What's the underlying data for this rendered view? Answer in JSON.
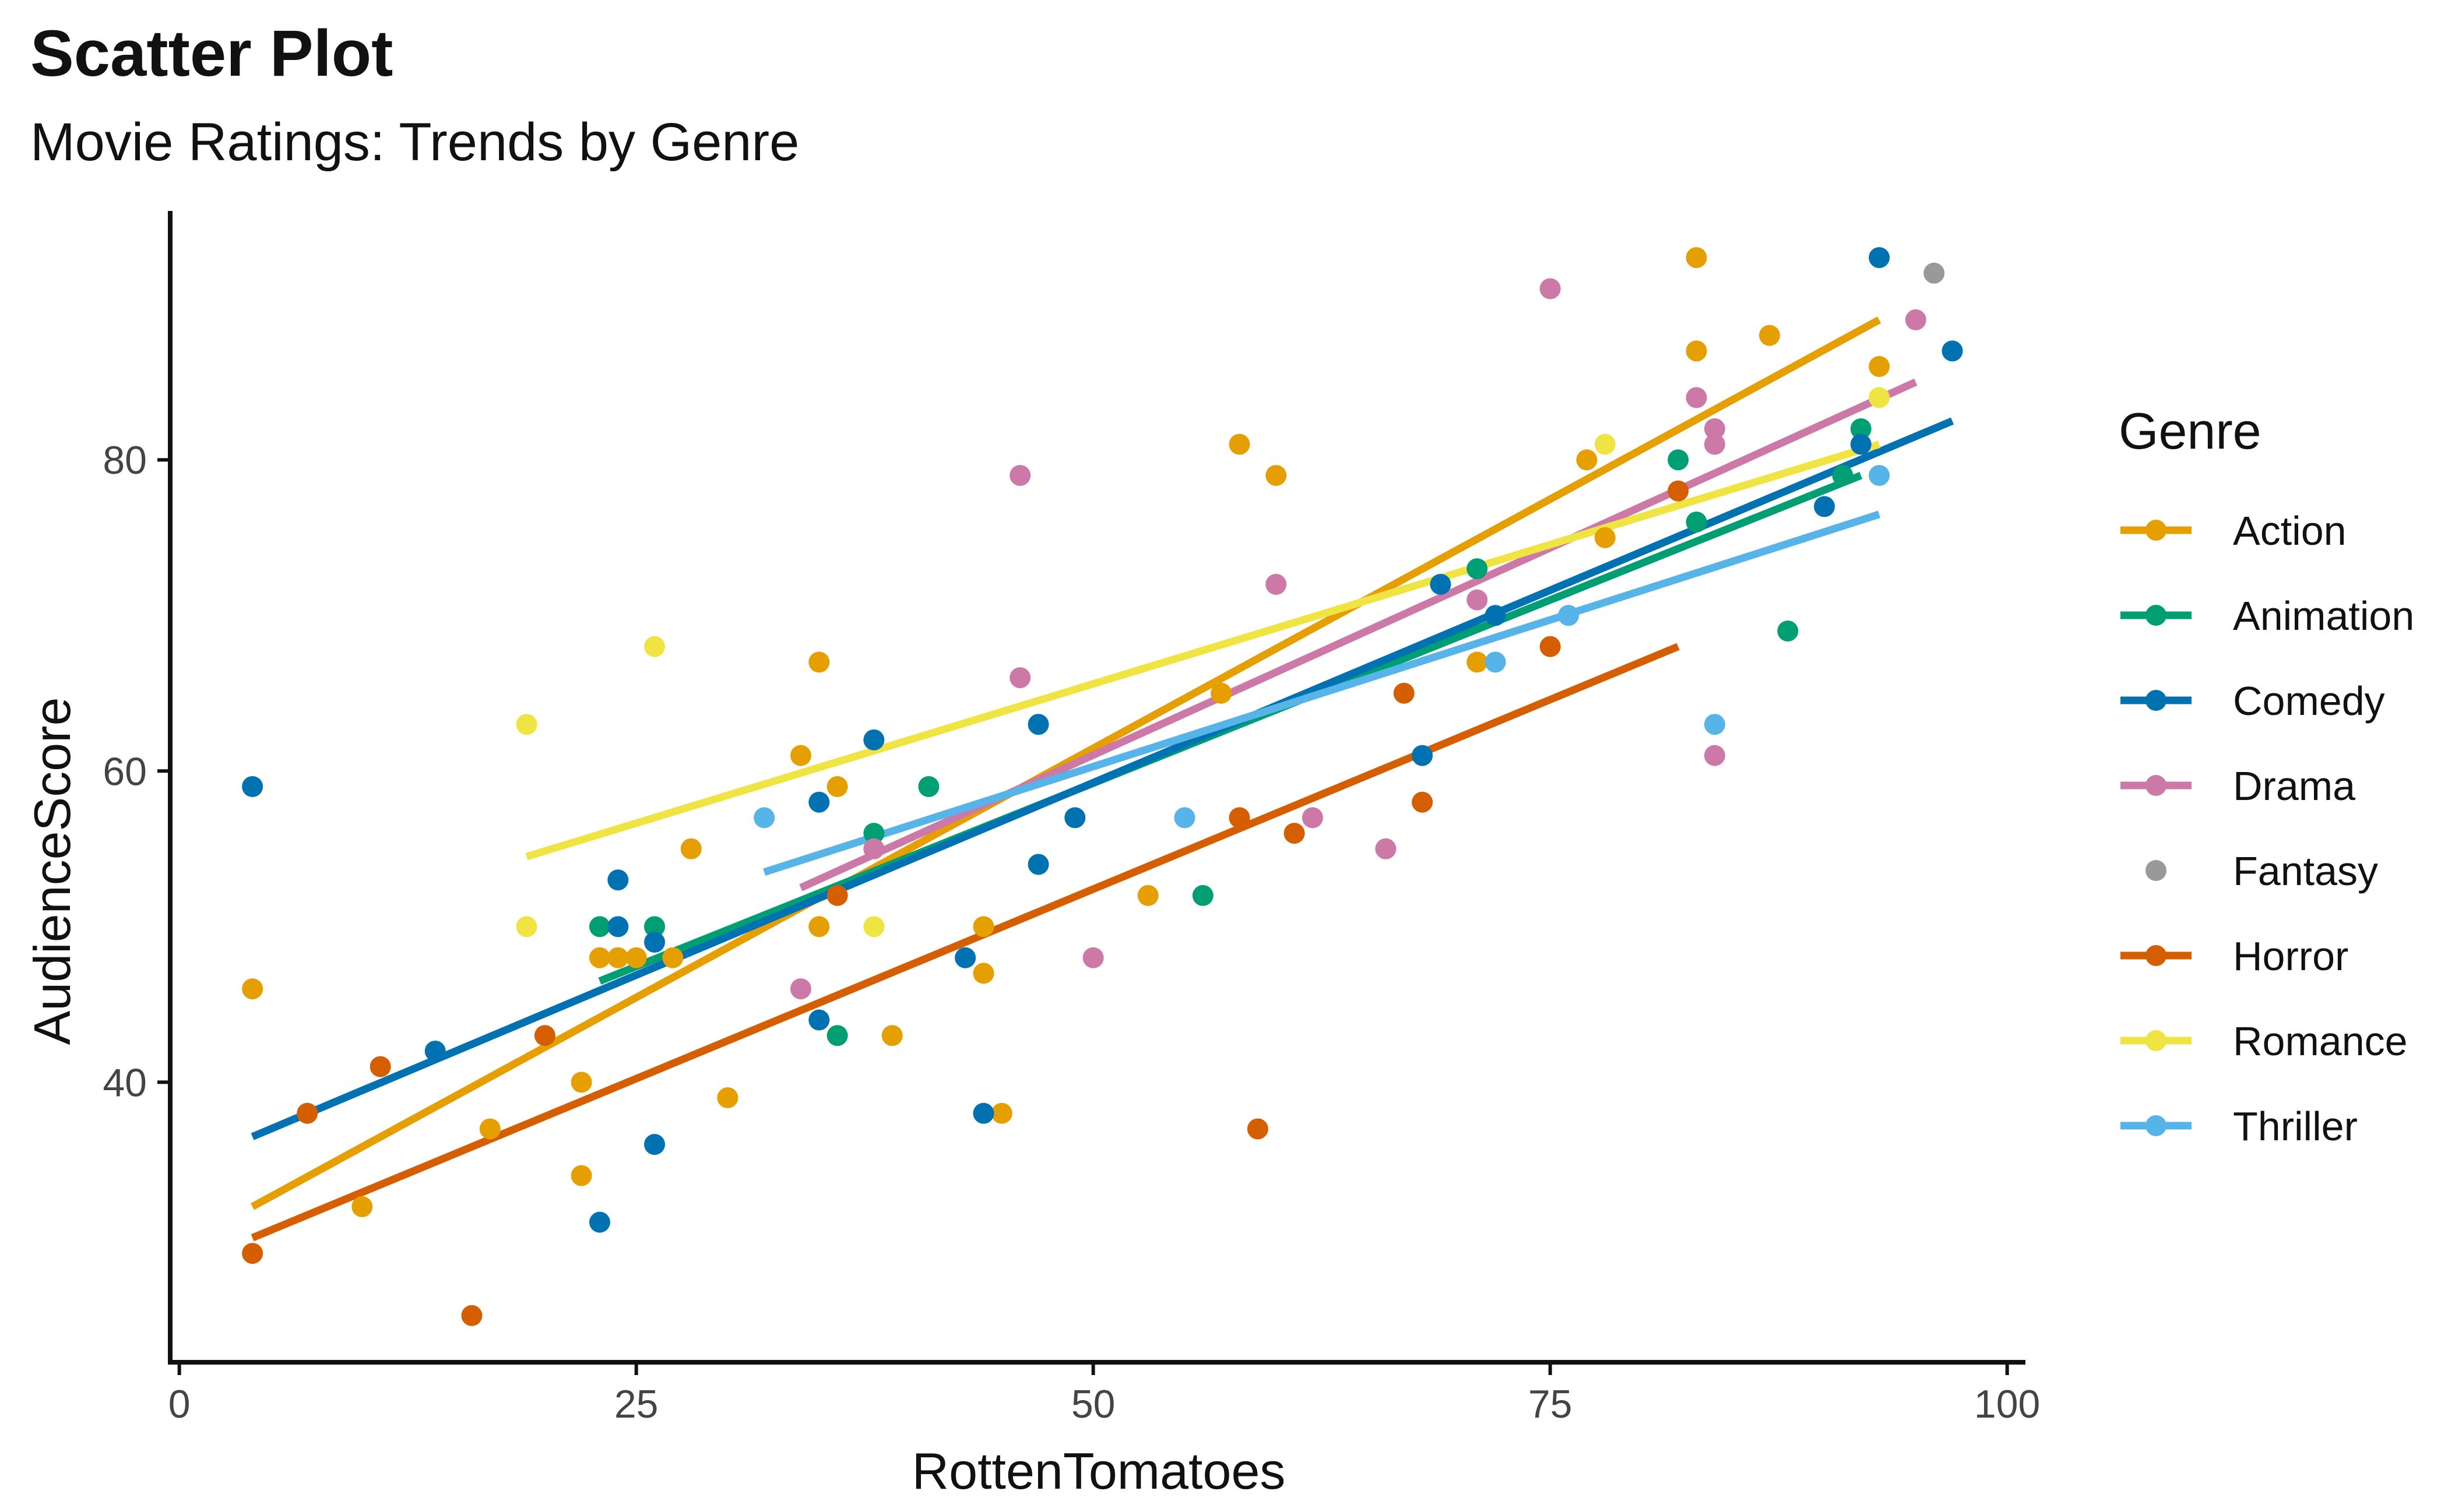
{
  "chart_data": {
    "type": "scatter",
    "title": "Scatter Plot",
    "subtitle": "Movie Ratings: Trends by Genre",
    "xlabel": "RottenTomatoes",
    "ylabel": "AudienceScore",
    "xlim": [
      -0.5,
      101
    ],
    "ylim": [
      22,
      96
    ],
    "xticks": [
      0,
      25,
      50,
      75,
      100
    ],
    "yticks": [
      40,
      60,
      80
    ],
    "grid": false,
    "legend": {
      "title": "Genre",
      "position": "right"
    },
    "series": [
      {
        "name": "Action",
        "color": "#E69F00",
        "points": [
          [
            4,
            46
          ],
          [
            10,
            32
          ],
          [
            17,
            37
          ],
          [
            22,
            34
          ],
          [
            22,
            40
          ],
          [
            23,
            48
          ],
          [
            24,
            48
          ],
          [
            25,
            48
          ],
          [
            27,
            48
          ],
          [
            28,
            55
          ],
          [
            30,
            39
          ],
          [
            34,
            61
          ],
          [
            35,
            67
          ],
          [
            35,
            50
          ],
          [
            36,
            59
          ],
          [
            39,
            43
          ],
          [
            44,
            50
          ],
          [
            44,
            47
          ],
          [
            45,
            38
          ],
          [
            53,
            52
          ],
          [
            57,
            65
          ],
          [
            58,
            81
          ],
          [
            60,
            79
          ],
          [
            71,
            67
          ],
          [
            77,
            80
          ],
          [
            78,
            75
          ],
          [
            83,
            93
          ],
          [
            83,
            87
          ],
          [
            87,
            88
          ],
          [
            93,
            86
          ]
        ],
        "trend": [
          [
            4,
            32
          ],
          [
            93,
            89
          ]
        ]
      },
      {
        "name": "Animation",
        "color": "#009E73",
        "points": [
          [
            23,
            50
          ],
          [
            26,
            50
          ],
          [
            36,
            43
          ],
          [
            38,
            56
          ],
          [
            41,
            59
          ],
          [
            56,
            52
          ],
          [
            71,
            73
          ],
          [
            82,
            80
          ],
          [
            83,
            76
          ],
          [
            88,
            69
          ],
          [
            91,
            79
          ],
          [
            92,
            82
          ]
        ],
        "trend": [
          [
            23,
            46.5
          ],
          [
            92,
            79
          ]
        ]
      },
      {
        "name": "Comedy",
        "color": "#0072B2",
        "points": [
          [
            4,
            59
          ],
          [
            14,
            42
          ],
          [
            23,
            31
          ],
          [
            24,
            53
          ],
          [
            24,
            50
          ],
          [
            26,
            36
          ],
          [
            26,
            49
          ],
          [
            35,
            58
          ],
          [
            35,
            44
          ],
          [
            38,
            62
          ],
          [
            43,
            48
          ],
          [
            44,
            38
          ],
          [
            47,
            63
          ],
          [
            47,
            54
          ],
          [
            49,
            57
          ],
          [
            68,
            61
          ],
          [
            69,
            72
          ],
          [
            72,
            70
          ],
          [
            90,
            77
          ],
          [
            92,
            81
          ],
          [
            93,
            93
          ],
          [
            97,
            87
          ]
        ],
        "trend": [
          [
            4,
            36.5
          ],
          [
            97,
            82.5
          ]
        ]
      },
      {
        "name": "Drama",
        "color": "#CC79A7",
        "points": [
          [
            34,
            46
          ],
          [
            38,
            55
          ],
          [
            46,
            79
          ],
          [
            46,
            66
          ],
          [
            50,
            48
          ],
          [
            60,
            72
          ],
          [
            62,
            57
          ],
          [
            66,
            55
          ],
          [
            71,
            71
          ],
          [
            75,
            91
          ],
          [
            83,
            84
          ],
          [
            84,
            82
          ],
          [
            84,
            81
          ],
          [
            84,
            61
          ],
          [
            95,
            89
          ]
        ],
        "trend": [
          [
            34,
            52.5
          ],
          [
            95,
            85
          ]
        ]
      },
      {
        "name": "Fantasy",
        "color": "#999999",
        "points": [
          [
            96,
            92
          ]
        ],
        "trend": null
      },
      {
        "name": "Horror",
        "color": "#D55E00",
        "points": [
          [
            4,
            29
          ],
          [
            7,
            38
          ],
          [
            11,
            41
          ],
          [
            16,
            25
          ],
          [
            20,
            43
          ],
          [
            36,
            52
          ],
          [
            58,
            57
          ],
          [
            59,
            37
          ],
          [
            61,
            56
          ],
          [
            67,
            65
          ],
          [
            68,
            58
          ],
          [
            75,
            68
          ],
          [
            82,
            78
          ]
        ],
        "trend": [
          [
            4,
            30
          ],
          [
            82,
            68
          ]
        ]
      },
      {
        "name": "Romance",
        "color": "#F0E442",
        "points": [
          [
            19,
            63
          ],
          [
            19,
            50
          ],
          [
            26,
            68
          ],
          [
            38,
            50
          ],
          [
            78,
            81
          ],
          [
            93,
            84
          ]
        ],
        "trend": [
          [
            19,
            54.5
          ],
          [
            93,
            81
          ]
        ]
      },
      {
        "name": "Thriller",
        "color": "#56B4E9",
        "points": [
          [
            32,
            57
          ],
          [
            55,
            57
          ],
          [
            72,
            67
          ],
          [
            76,
            70
          ],
          [
            84,
            63
          ],
          [
            93,
            79
          ]
        ],
        "trend": [
          [
            32,
            53.5
          ],
          [
            93,
            76.5
          ]
        ]
      }
    ]
  }
}
